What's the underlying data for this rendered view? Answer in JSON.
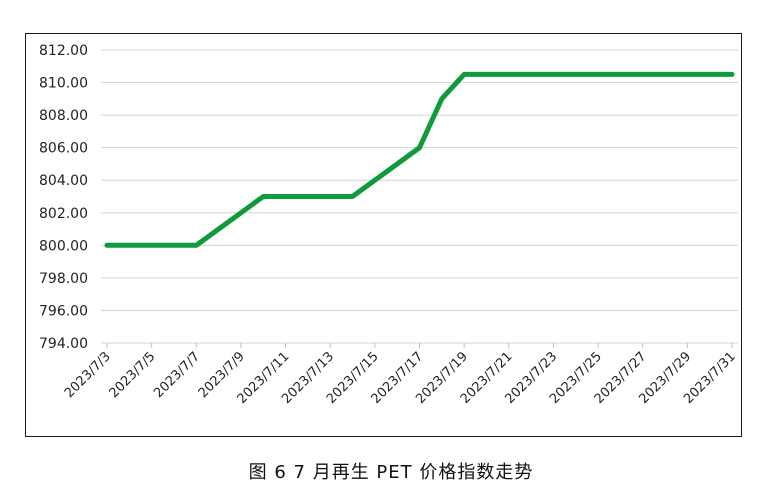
{
  "caption": "图 6  7 月再生 PET 价格指数走势",
  "chart_data": {
    "type": "line",
    "title": "",
    "xlabel": "",
    "ylabel": "",
    "ylim": [
      794,
      812
    ],
    "y_ticks": [
      "812.00",
      "810.00",
      "808.00",
      "806.00",
      "804.00",
      "802.00",
      "800.00",
      "798.00",
      "796.00",
      "794.00"
    ],
    "x_tick_labels": [
      "2023/7/3",
      "2023/7/5",
      "2023/7/7",
      "2023/7/9",
      "2023/7/11",
      "2023/7/13",
      "2023/7/15",
      "2023/7/17",
      "2023/7/19",
      "2023/7/21",
      "2023/7/23",
      "2023/7/25",
      "2023/7/27",
      "2023/7/29",
      "2023/7/31"
    ],
    "grid": true,
    "legend": "none",
    "series_color": "#0f9a3c",
    "x": [
      "2023/7/3",
      "2023/7/4",
      "2023/7/5",
      "2023/7/6",
      "2023/7/7",
      "2023/7/10",
      "2023/7/11",
      "2023/7/12",
      "2023/7/13",
      "2023/7/14",
      "2023/7/17",
      "2023/7/18",
      "2023/7/19",
      "2023/7/20",
      "2023/7/21",
      "2023/7/24",
      "2023/7/25",
      "2023/7/26",
      "2023/7/27",
      "2023/7/28",
      "2023/7/31"
    ],
    "series": [
      {
        "values": [
          800,
          800,
          800,
          800,
          800,
          803,
          803,
          803,
          803,
          803,
          806,
          809,
          810.5,
          810.5,
          810.5,
          810.5,
          810.5,
          810.5,
          810.5,
          810.5,
          810.5
        ]
      }
    ]
  }
}
